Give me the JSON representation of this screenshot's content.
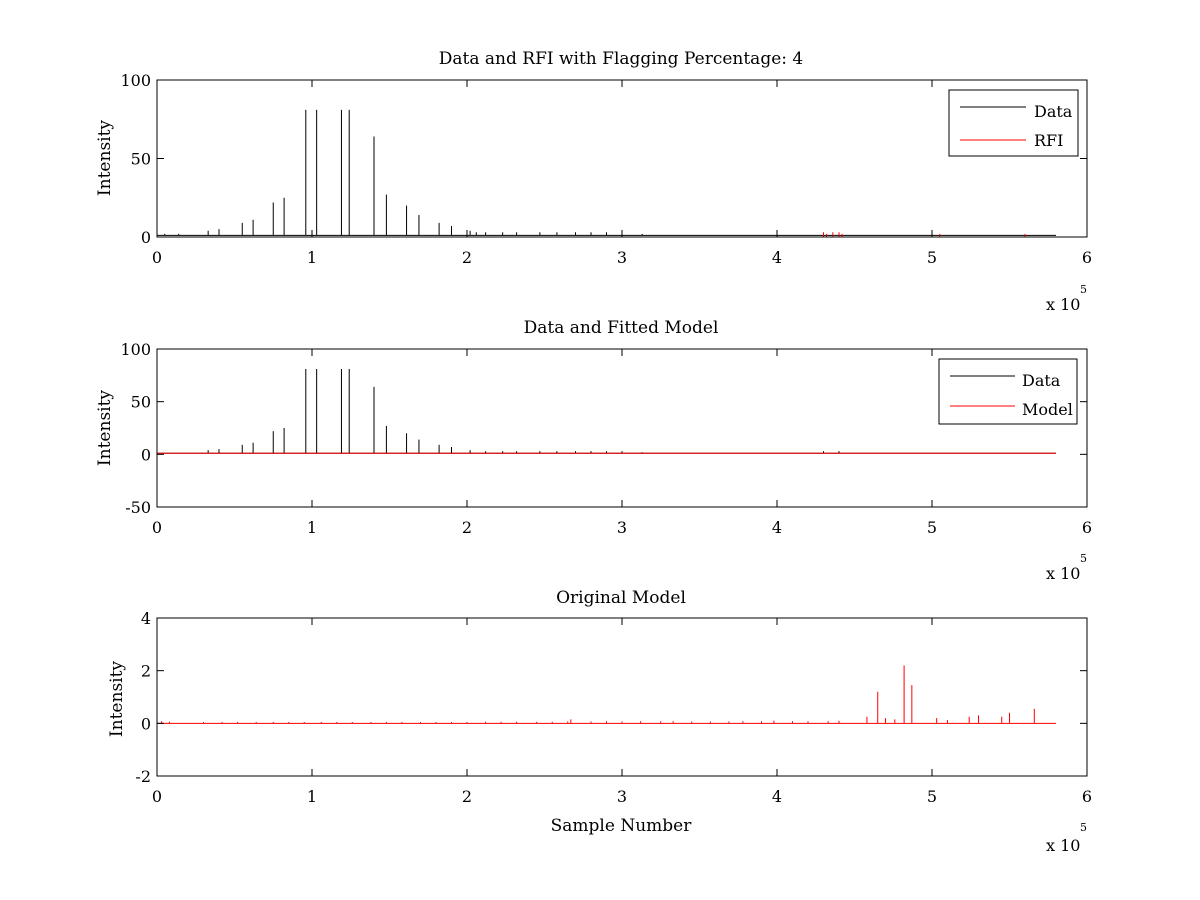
{
  "chart_data": [
    {
      "type": "line",
      "title": "Data and RFI with Flagging Percentage: 4",
      "xlabel": "",
      "ylabel": "Intensity",
      "xlim": [
        0,
        600000
      ],
      "ylim": [
        0,
        100
      ],
      "xticks": [
        0,
        1,
        2,
        3,
        4,
        5,
        6
      ],
      "yticks": [
        0,
        50,
        100
      ],
      "x_exponent": {
        "base": "x 10",
        "power": "5"
      },
      "legend": {
        "placement": "top-right",
        "entries": [
          "Data",
          "RFI"
        ]
      },
      "grid": false,
      "series": [
        {
          "name": "Data",
          "color": "#000000",
          "baseline": 1,
          "spikes": [
            [
              5000,
              2
            ],
            [
              14000,
              2
            ],
            [
              33000,
              4
            ],
            [
              40000,
              5
            ],
            [
              55000,
              9
            ],
            [
              62000,
              11
            ],
            [
              75000,
              22
            ],
            [
              82000,
              25
            ],
            [
              96000,
              81
            ],
            [
              103000,
              81
            ],
            [
              119000,
              81
            ],
            [
              124000,
              81
            ],
            [
              140000,
              64
            ],
            [
              148000,
              27
            ],
            [
              161000,
              20
            ],
            [
              169000,
              14
            ],
            [
              182000,
              9
            ],
            [
              190000,
              7
            ],
            [
              202000,
              4
            ],
            [
              206000,
              3
            ],
            [
              212000,
              3
            ],
            [
              223000,
              3
            ],
            [
              232000,
              3
            ],
            [
              247000,
              3
            ],
            [
              258000,
              3
            ],
            [
              270000,
              3
            ],
            [
              280000,
              3
            ],
            [
              290000,
              3
            ],
            [
              300000,
              3
            ],
            [
              313000,
              2
            ]
          ]
        },
        {
          "name": "RFI",
          "color": "#ff0000",
          "baseline": 0,
          "spikes": [
            [
              430000,
              3
            ],
            [
              432000,
              2
            ],
            [
              436000,
              3
            ],
            [
              440000,
              3
            ],
            [
              442000,
              2
            ],
            [
              505000,
              2
            ],
            [
              560000,
              2
            ]
          ]
        }
      ]
    },
    {
      "type": "line",
      "title": "Data and Fitted Model",
      "xlabel": "",
      "ylabel": "Intensity",
      "xlim": [
        0,
        600000
      ],
      "ylim": [
        -50,
        100
      ],
      "xticks": [
        0,
        1,
        2,
        3,
        4,
        5,
        6
      ],
      "yticks": [
        -50,
        0,
        50,
        100
      ],
      "x_exponent": {
        "base": "x 10",
        "power": "5"
      },
      "legend": {
        "placement": "top-right",
        "entries": [
          "Data",
          "Model"
        ]
      },
      "grid": false,
      "series": [
        {
          "name": "Data",
          "color": "#000000",
          "baseline": 1,
          "spikes": [
            [
              33000,
              4
            ],
            [
              40000,
              5
            ],
            [
              55000,
              9
            ],
            [
              62000,
              11
            ],
            [
              75000,
              22
            ],
            [
              82000,
              25
            ],
            [
              96000,
              81
            ],
            [
              103000,
              81
            ],
            [
              119000,
              81
            ],
            [
              124000,
              81
            ],
            [
              140000,
              64
            ],
            [
              148000,
              27
            ],
            [
              161000,
              20
            ],
            [
              169000,
              14
            ],
            [
              182000,
              9
            ],
            [
              190000,
              7
            ],
            [
              202000,
              4
            ],
            [
              212000,
              3
            ],
            [
              223000,
              3
            ],
            [
              232000,
              3
            ],
            [
              247000,
              3
            ],
            [
              258000,
              3
            ],
            [
              270000,
              3
            ],
            [
              280000,
              3
            ],
            [
              290000,
              3
            ],
            [
              300000,
              3
            ],
            [
              313000,
              2
            ],
            [
              430000,
              3
            ],
            [
              440000,
              3
            ]
          ]
        },
        {
          "name": "Model",
          "color": "#ff0000",
          "baseline": 1,
          "spikes": []
        }
      ]
    },
    {
      "type": "line",
      "title": "Original Model",
      "xlabel": "Sample Number",
      "ylabel": "Intensity",
      "xlim": [
        0,
        600000
      ],
      "ylim": [
        -2,
        4
      ],
      "xticks": [
        0,
        1,
        2,
        3,
        4,
        5,
        6
      ],
      "yticks": [
        -2,
        0,
        2,
        4
      ],
      "x_exponent": {
        "base": "x 10",
        "power": "5"
      },
      "legend": null,
      "grid": false,
      "series": [
        {
          "color": "#ff0000",
          "baseline": 0,
          "spikes": [
            [
              3000,
              0.08
            ],
            [
              8000,
              0.06
            ],
            [
              30000,
              0.05
            ],
            [
              42000,
              0.05
            ],
            [
              52000,
              0.05
            ],
            [
              64000,
              0.05
            ],
            [
              75000,
              0.05
            ],
            [
              85000,
              0.05
            ],
            [
              95000,
              0.05
            ],
            [
              106000,
              0.05
            ],
            [
              116000,
              0.05
            ],
            [
              126000,
              0.05
            ],
            [
              138000,
              0.05
            ],
            [
              148000,
              0.05
            ],
            [
              158000,
              0.05
            ],
            [
              170000,
              0.05
            ],
            [
              180000,
              0.05
            ],
            [
              190000,
              0.05
            ],
            [
              200000,
              0.05
            ],
            [
              212000,
              0.06
            ],
            [
              222000,
              0.06
            ],
            [
              232000,
              0.06
            ],
            [
              245000,
              0.06
            ],
            [
              255000,
              0.06
            ],
            [
              265000,
              0.07
            ],
            [
              267000,
              0.15
            ],
            [
              280000,
              0.07
            ],
            [
              290000,
              0.08
            ],
            [
              300000,
              0.07
            ],
            [
              312000,
              0.08
            ],
            [
              325000,
              0.08
            ],
            [
              333000,
              0.08
            ],
            [
              345000,
              0.07
            ],
            [
              357000,
              0.07
            ],
            [
              369000,
              0.07
            ],
            [
              378000,
              0.08
            ],
            [
              390000,
              0.08
            ],
            [
              398000,
              0.1
            ],
            [
              410000,
              0.08
            ],
            [
              420000,
              0.08
            ],
            [
              433000,
              0.08
            ],
            [
              440000,
              0.1
            ],
            [
              458000,
              0.25
            ],
            [
              465000,
              1.2
            ],
            [
              470000,
              0.2
            ],
            [
              476000,
              0.15
            ],
            [
              482000,
              2.2
            ],
            [
              487000,
              1.45
            ],
            [
              503000,
              0.2
            ],
            [
              510000,
              0.12
            ],
            [
              524000,
              0.25
            ],
            [
              530000,
              0.3
            ],
            [
              545000,
              0.25
            ],
            [
              550000,
              0.4
            ],
            [
              566000,
              0.55
            ]
          ]
        }
      ]
    }
  ]
}
